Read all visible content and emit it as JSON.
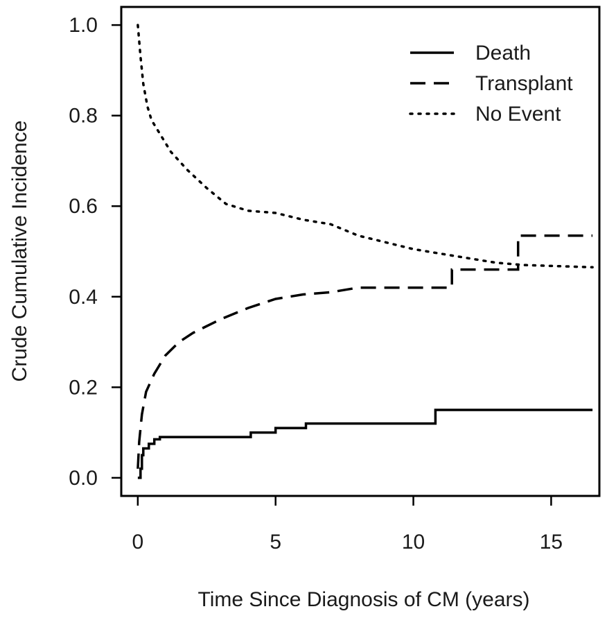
{
  "chart_data": {
    "type": "line",
    "title": "",
    "xlabel": "Time Since Diagnosis of CM (years)",
    "ylabel": "Crude Cumulative Incidence",
    "xlim": [
      -0.6,
      16.75
    ],
    "ylim": [
      -0.04,
      1.04
    ],
    "x_ticks": [
      0,
      5,
      10,
      15
    ],
    "y_ticks": [
      "0.0",
      "0.2",
      "0.4",
      "0.6",
      "0.8",
      "1.0"
    ],
    "grid": false,
    "legend_position": "top-right",
    "series": [
      {
        "name": "Death",
        "style": "solid",
        "step": true,
        "points": [
          [
            0,
            0.0
          ],
          [
            0.1,
            0.02
          ],
          [
            0.15,
            0.05
          ],
          [
            0.2,
            0.065
          ],
          [
            0.4,
            0.075
          ],
          [
            0.6,
            0.085
          ],
          [
            0.8,
            0.09
          ],
          [
            4.0,
            0.09
          ],
          [
            4.1,
            0.1
          ],
          [
            4.9,
            0.1
          ],
          [
            5.0,
            0.11
          ],
          [
            6.0,
            0.11
          ],
          [
            6.1,
            0.12
          ],
          [
            10.8,
            0.12
          ],
          [
            10.8,
            0.15
          ],
          [
            16.5,
            0.15
          ]
        ]
      },
      {
        "name": "Transplant",
        "style": "dashed",
        "points": [
          [
            0,
            0.02
          ],
          [
            0.05,
            0.08
          ],
          [
            0.15,
            0.14
          ],
          [
            0.3,
            0.19
          ],
          [
            0.6,
            0.23
          ],
          [
            1.0,
            0.27
          ],
          [
            1.5,
            0.3
          ],
          [
            2.0,
            0.32
          ],
          [
            3.0,
            0.35
          ],
          [
            4.0,
            0.375
          ],
          [
            5.0,
            0.395
          ],
          [
            6.0,
            0.405
          ],
          [
            7.0,
            0.41
          ],
          [
            8.0,
            0.42
          ],
          [
            11.4,
            0.42
          ],
          [
            11.4,
            0.46
          ],
          [
            13.8,
            0.46
          ],
          [
            13.8,
            0.535
          ],
          [
            16.5,
            0.535
          ]
        ]
      },
      {
        "name": "No Event",
        "style": "dotted",
        "points": [
          [
            0,
            1.0
          ],
          [
            0.1,
            0.93
          ],
          [
            0.2,
            0.87
          ],
          [
            0.35,
            0.82
          ],
          [
            0.5,
            0.79
          ],
          [
            0.8,
            0.76
          ],
          [
            1.2,
            0.72
          ],
          [
            1.8,
            0.68
          ],
          [
            2.5,
            0.64
          ],
          [
            3.2,
            0.605
          ],
          [
            4.0,
            0.59
          ],
          [
            5.0,
            0.585
          ],
          [
            6.0,
            0.57
          ],
          [
            7.0,
            0.56
          ],
          [
            8.0,
            0.535
          ],
          [
            9.0,
            0.52
          ],
          [
            10.0,
            0.505
          ],
          [
            11.0,
            0.495
          ],
          [
            12.0,
            0.485
          ],
          [
            13.0,
            0.475
          ],
          [
            14.0,
            0.47
          ],
          [
            16.5,
            0.465
          ]
        ]
      }
    ]
  }
}
